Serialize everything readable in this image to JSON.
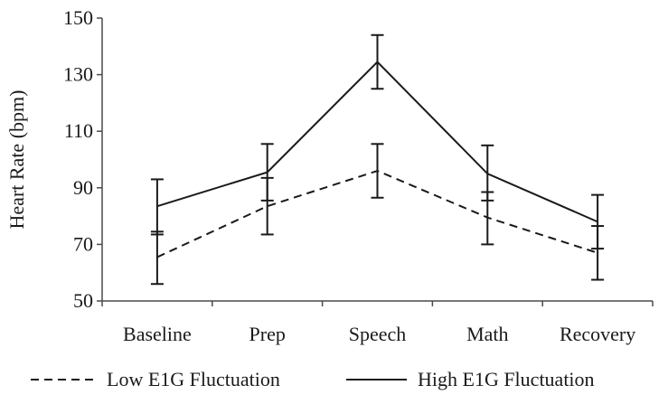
{
  "chart_data": {
    "type": "line",
    "title": "",
    "xlabel": "",
    "ylabel": "Heart Rate (bpm)",
    "ylim": [
      50,
      150
    ],
    "yticks": [
      50,
      70,
      90,
      110,
      130,
      150
    ],
    "grid": false,
    "legend_position": "bottom",
    "categories": [
      "Baseline",
      "Prep",
      "Speech",
      "Math",
      "Recovery"
    ],
    "series": [
      {
        "name": "Low E1G Fluctuation",
        "line_style": "dashed",
        "color": "#1a1a1a",
        "values": [
          65.5,
          83.5,
          96,
          79.5,
          67
        ],
        "error_low": [
          56,
          73.5,
          86.5,
          70,
          57.5
        ],
        "error_high": [
          74.5,
          93.5,
          105.5,
          88.5,
          76.5
        ]
      },
      {
        "name": "High E1G Fluctuation",
        "line_style": "solid",
        "color": "#1a1a1a",
        "values": [
          83.5,
          95.5,
          134.5,
          95,
          78
        ],
        "error_low": [
          73.5,
          85.5,
          125,
          85.5,
          68.5
        ],
        "error_high": [
          93,
          105.5,
          144,
          105,
          87.5
        ]
      }
    ]
  }
}
